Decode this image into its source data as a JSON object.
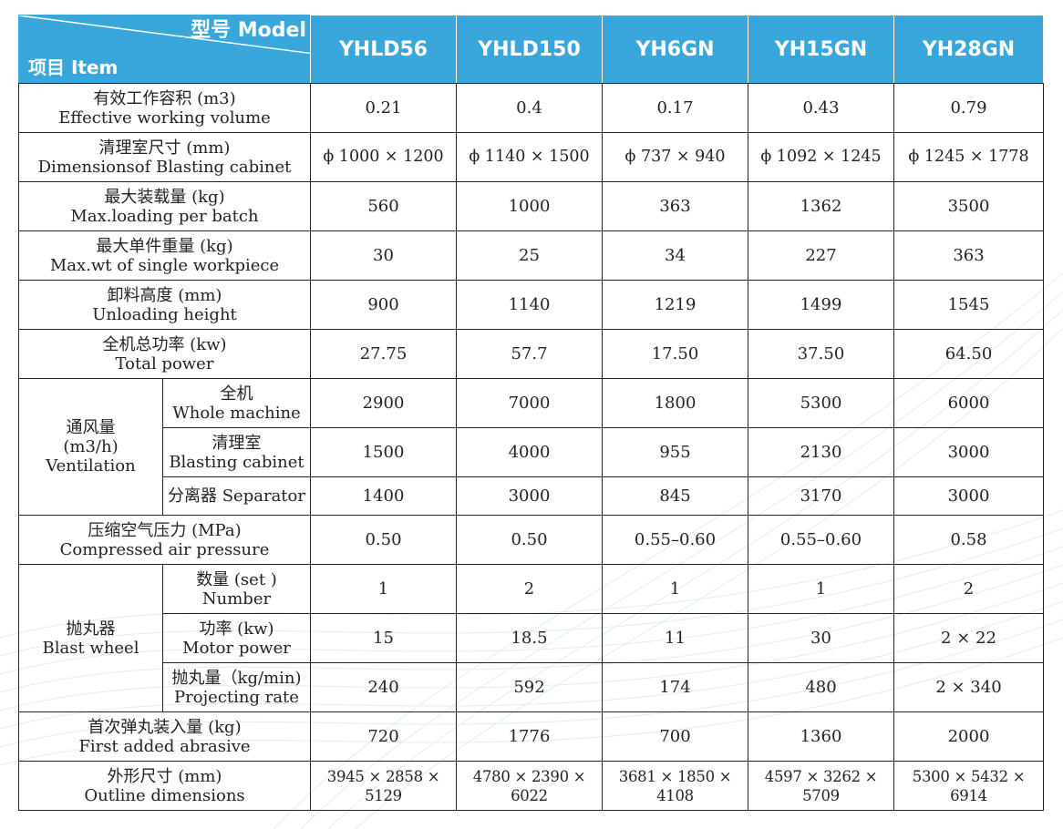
{
  "header": {
    "corner_top": "型号 Model",
    "corner_bottom": "项目 Item",
    "models": [
      "YHLD56",
      "YHLD150",
      "YH6GN",
      "YH15GN",
      "YH28GN"
    ]
  },
  "rows": {
    "volume": {
      "cn": "有效工作容积 (m3)",
      "en": "Effective working volume",
      "values": [
        "0.21",
        "0.4",
        "0.17",
        "0.43",
        "0.79"
      ]
    },
    "cabinet": {
      "cn": "清理室尺寸 (mm)",
      "en": "Dimensionsof Blasting cabinet",
      "values": [
        "ϕ 1000 × 1200",
        "ϕ 1140 × 1500",
        "ϕ 737 × 940",
        "ϕ 1092 × 1245",
        "ϕ 1245 × 1778"
      ]
    },
    "max_load": {
      "cn": "最大装载量 (kg)",
      "en": "Max.loading per batch",
      "values": [
        "560",
        "1000",
        "363",
        "1362",
        "3500"
      ]
    },
    "max_single": {
      "cn": "最大单件重量 (kg)",
      "en": "Max.wt of single workpiece",
      "values": [
        "30",
        "25",
        "34",
        "227",
        "363"
      ]
    },
    "unload": {
      "cn": "卸料高度 (mm)",
      "en": "Unloading height",
      "values": [
        "900",
        "1140",
        "1219",
        "1499",
        "1545"
      ]
    },
    "power": {
      "cn": "全机总功率 (kw)",
      "en": "Total power",
      "values": [
        "27.75",
        "57.7",
        "17.50",
        "37.50",
        "64.50"
      ]
    },
    "air": {
      "cn": "压缩空气压力 (MPa)",
      "en": "Compressed air pressure",
      "values": [
        "0.50",
        "0.50",
        "0.55–0.60",
        "0.55–0.60",
        "0.58"
      ]
    },
    "abrasive": {
      "cn": "首次弹丸装入量 (kg)",
      "en": "First added abrasive",
      "values": [
        "720",
        "1776",
        "700",
        "1360",
        "2000"
      ]
    },
    "outline": {
      "cn": "外形尺寸 (mm)",
      "en": "Outline dimensions",
      "values": [
        "3945 × 2858 × 5129",
        "4780 × 2390 × 6022",
        "3681 × 1850 × 4108",
        "4597 × 3262 × 5709",
        "5300 × 5432 × 6914"
      ]
    }
  },
  "ventilation": {
    "label_cn": "通风量",
    "label_unit": "(m3/h)",
    "label_en": "Ventilation",
    "whole": {
      "cn": "全机",
      "en": "Whole machine",
      "values": [
        "2900",
        "7000",
        "1800",
        "5300",
        "6000"
      ]
    },
    "cabinet": {
      "cn": "清理室",
      "en": "Blasting cabinet",
      "values": [
        "1500",
        "4000",
        "955",
        "2130",
        "3000"
      ]
    },
    "separator": {
      "label": "分离器 Separator",
      "values": [
        "1400",
        "3000",
        "845",
        "3170",
        "3000"
      ]
    }
  },
  "blast_wheel": {
    "label_cn": "抛丸器",
    "label_en": "Blast wheel",
    "number": {
      "cn": "数量 (set )",
      "en": "Number",
      "values": [
        "1",
        "2",
        "1",
        "1",
        "2"
      ]
    },
    "motor": {
      "cn": "功率 (kw)",
      "en": "Motor power",
      "values": [
        "15",
        "18.5",
        "11",
        "30",
        "2 × 22"
      ]
    },
    "rate": {
      "cn": "抛丸量（kg/min)",
      "en": "Projecting rate",
      "values": [
        "240",
        "592",
        "174",
        "480",
        "2 × 340"
      ]
    }
  },
  "colors": {
    "header_bg": "#3aa7dc",
    "header_text": "#ffffff",
    "border": "#222222"
  }
}
